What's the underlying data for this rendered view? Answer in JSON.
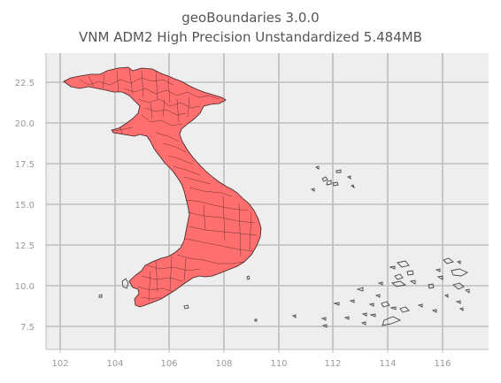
{
  "map": {
    "title": "geoBoundaries 3.0.0",
    "subtitle": "VNM ADM2 High Precision Unstandardized 5.484MB",
    "fill_color": "#ff6f6f",
    "edge_color": "#3a2020",
    "background_color": "#eeeeee",
    "grid": true,
    "x_ticks": [
      "102",
      "104",
      "106",
      "108",
      "110",
      "112",
      "114",
      "116"
    ],
    "y_ticks": [
      "22.5",
      "20.0",
      "17.5",
      "15.0",
      "12.5",
      "10.0",
      "7.5"
    ]
  }
}
